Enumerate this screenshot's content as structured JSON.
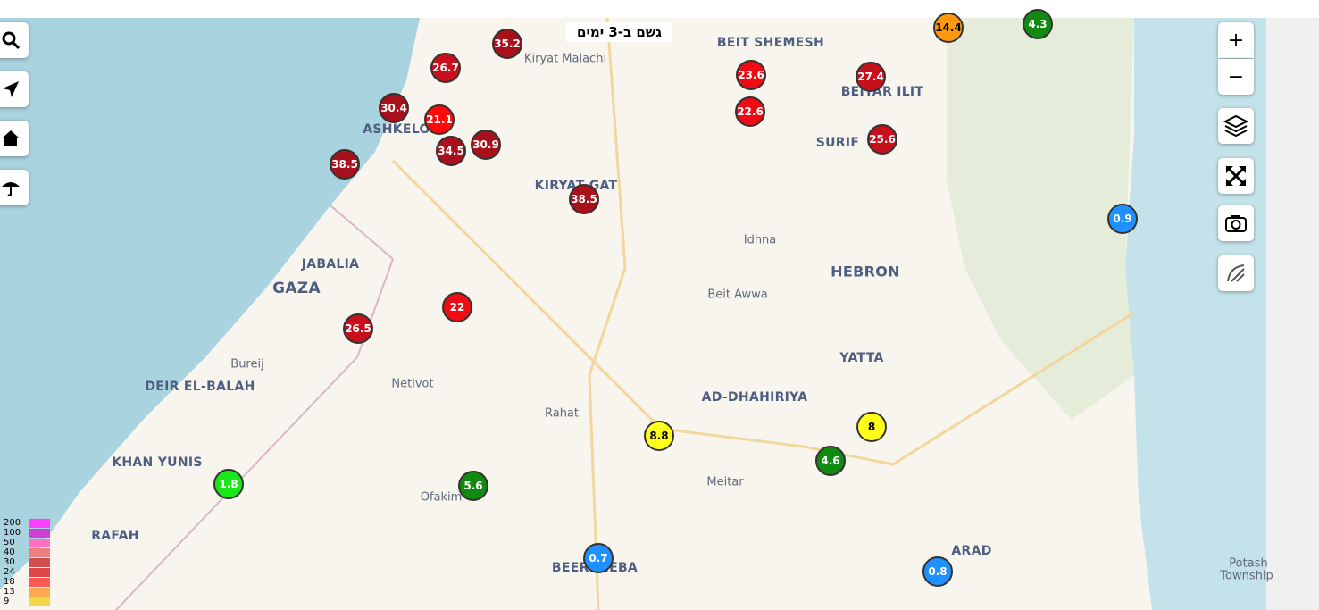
{
  "title": "גשם ב-3 ימים",
  "place_labels": [
    "BEIT SHEMESH",
    "Kiryat Malachi",
    "BEITAR ILIT",
    "ASHKELON",
    "SURIF",
    "KIRYAT GAT",
    "Idhna",
    "HEBRON",
    "JABALIA",
    "GAZA",
    "Beit Awwa",
    "YATTA",
    "Bureij",
    "DEIR EL-BALAH",
    "Netivot",
    "AD-DHAHIRIYA",
    "Rahat",
    "KHAN YUNIS",
    "Meitar",
    "Ofakim",
    "RAFAH",
    "BEERSHEBA",
    "ARAD",
    "Potash",
    "Township"
  ],
  "markers": [
    {
      "value": 35.2,
      "color": "#a8101c"
    },
    {
      "value": 26.7,
      "color": "#c8101c"
    },
    {
      "value": 30.4,
      "color": "#a8101c"
    },
    {
      "value": 21.1,
      "color": "#ff0a0a"
    },
    {
      "value": 34.5,
      "color": "#a8101c"
    },
    {
      "value": 30.9,
      "color": "#a8101c"
    },
    {
      "value": 38.5,
      "color": "#a8101c"
    },
    {
      "value": 38.5,
      "color": "#a8101c"
    },
    {
      "value": 23.6,
      "color": "#f00a14"
    },
    {
      "value": 22.6,
      "color": "#f00a14"
    },
    {
      "value": 27.4,
      "color": "#c8101c"
    },
    {
      "value": 25.6,
      "color": "#c8101c"
    },
    {
      "value": 14.4,
      "color": "#ff9a10"
    },
    {
      "value": 4.3,
      "color": "#108a10"
    },
    {
      "value": 0.9,
      "color": "#1e90ff"
    },
    {
      "value": 22,
      "color": "#f00a14"
    },
    {
      "value": 26.5,
      "color": "#c8101c"
    },
    {
      "value": 8.8,
      "color": "#ffff1a"
    },
    {
      "value": 8,
      "color": "#ffff1a"
    },
    {
      "value": 4.6,
      "color": "#108a10"
    },
    {
      "value": 1.8,
      "color": "#18e818"
    },
    {
      "value": 5.6,
      "color": "#108a10"
    },
    {
      "value": 0.7,
      "color": "#1e90ff"
    },
    {
      "value": 0.8,
      "color": "#1e90ff"
    }
  ],
  "legend": [
    {
      "label": 200,
      "color": "#ff40ff"
    },
    {
      "label": 100,
      "color": "#d040d0"
    },
    {
      "label": 50,
      "color": "#ff70c0"
    },
    {
      "label": 40,
      "color": "#f08080"
    },
    {
      "label": 30,
      "color": "#d05050"
    },
    {
      "label": 24,
      "color": "#e04848"
    },
    {
      "label": 18,
      "color": "#ff5858"
    },
    {
      "label": 13,
      "color": "#ffa850"
    },
    {
      "label": 9,
      "color": "#f0d848"
    }
  ],
  "controls": {
    "zoom_in": "+",
    "zoom_out": "−"
  }
}
